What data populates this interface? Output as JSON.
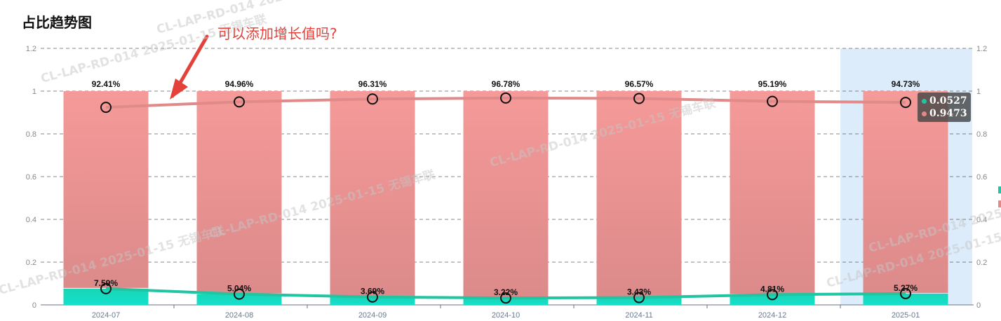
{
  "title": "占比趋势图",
  "annotation": "可以添加增长值吗?",
  "watermark": "CL-LAP-RD-014  2025-01-15  无锡车联",
  "colors": {
    "pink_top": "#f59a99",
    "pink_bottom": "#dc8a8a",
    "teal_top": "#19d6b6",
    "teal_bottom": "#13e0cc",
    "pink_line": "#e08a8a",
    "teal_line": "#21c4a3",
    "highlight": "#dcecfb",
    "arrow": "#e4413a"
  },
  "tooltip": {
    "teal_value": "0.0527",
    "pink_value": "0.9473"
  },
  "chart_data": {
    "type": "bar",
    "stacked": true,
    "categories": [
      "2024-07",
      "2024-08",
      "2024-09",
      "2024-10",
      "2024-11",
      "2024-12",
      "2025-01"
    ],
    "series": [
      {
        "values": [
          0.0759,
          0.0504,
          0.0369,
          0.0322,
          0.0343,
          0.0481,
          0.0527
        ],
        "labels": [
          "7.59%",
          "5.04%",
          "3.69%",
          "3.22%",
          "3.43%",
          "4.81%",
          "5.27%"
        ]
      },
      {
        "values": [
          0.9241,
          0.9496,
          0.9631,
          0.9678,
          0.9657,
          0.9519,
          0.9473
        ],
        "labels": [
          "92.41%",
          "94.96%",
          "96.31%",
          "96.78%",
          "96.57%",
          "95.19%",
          "94.73%"
        ]
      }
    ],
    "lines": [
      {
        "values": [
          0.0759,
          0.0504,
          0.0369,
          0.0322,
          0.0343,
          0.0481,
          0.0527
        ]
      },
      {
        "values": [
          0.9241,
          0.9496,
          0.9631,
          0.9678,
          0.9657,
          0.9519,
          0.9473
        ]
      }
    ],
    "ylim": [
      0,
      1.2
    ],
    "yticks": [
      "0",
      "0.2",
      "0.4",
      "0.6",
      "0.8",
      "1",
      "1.2"
    ],
    "grid": true,
    "highlighted_category": "2025-01"
  }
}
